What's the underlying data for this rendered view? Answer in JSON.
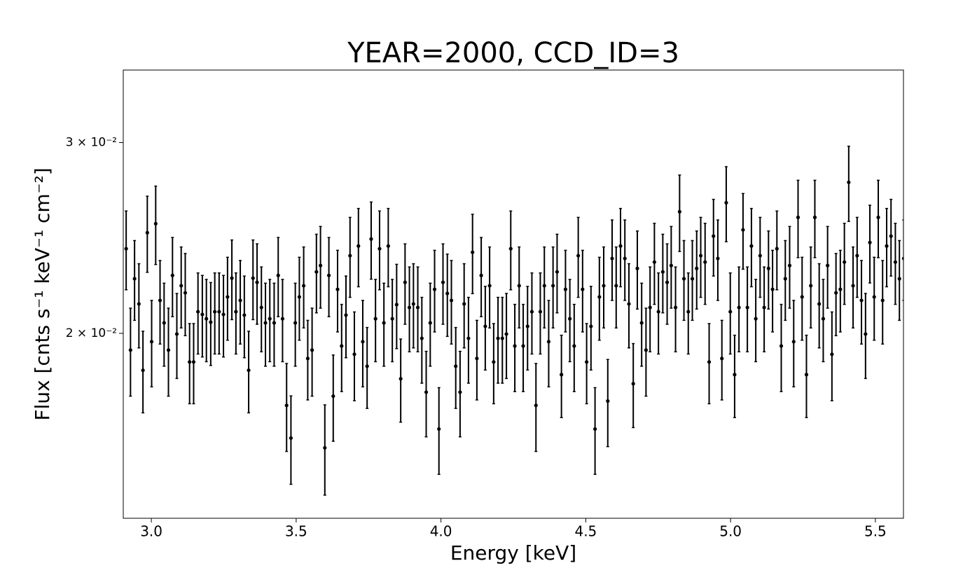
{
  "chart_data": {
    "type": "errorbar",
    "title": "YEAR=2000, CCD_ID=3",
    "xlabel": "Energy [keV]",
    "ylabel": "Flux [cnts s⁻¹ keV⁻¹ cm⁻²]",
    "color": "#000000",
    "ylog": true,
    "xlim": [
      2.903,
      5.597
    ],
    "ylim": [
      0.0135,
      0.035
    ],
    "xticks": [
      {
        "value": 3,
        "label": "3.0"
      },
      3.5,
      {
        "value": 4,
        "label": "4.0"
      },
      4.5,
      {
        "value": 5,
        "label": "5.0"
      },
      5.5
    ],
    "yticks": [
      {
        "value": 0.02,
        "label": "2 × 10⁻²"
      },
      {
        "value": 0.03,
        "label": "3 × 10⁻²"
      }
    ],
    "x": [
      2.913,
      2.928,
      2.942,
      2.957,
      2.971,
      2.986,
      3.001,
      3.015,
      3.03,
      3.044,
      3.059,
      3.073,
      3.088,
      3.103,
      3.117,
      3.132,
      3.146,
      3.161,
      3.176,
      3.19,
      3.205,
      3.219,
      3.234,
      3.249,
      3.263,
      3.278,
      3.292,
      3.307,
      3.321,
      3.336,
      3.351,
      3.365,
      3.38,
      3.394,
      3.409,
      3.424,
      3.438,
      3.453,
      3.467,
      3.482,
      3.497,
      3.511,
      3.526,
      3.54,
      3.555,
      3.57,
      3.584,
      3.599,
      3.613,
      3.628,
      3.643,
      3.657,
      3.672,
      3.686,
      3.701,
      3.715,
      3.73,
      3.745,
      3.759,
      3.774,
      3.788,
      3.803,
      3.818,
      3.832,
      3.847,
      3.861,
      3.876,
      3.891,
      3.905,
      3.92,
      3.934,
      3.949,
      3.963,
      3.978,
      3.993,
      4.007,
      4.022,
      4.036,
      4.051,
      4.066,
      4.08,
      4.095,
      4.109,
      4.124,
      4.139,
      4.153,
      4.168,
      4.182,
      4.197,
      4.212,
      4.226,
      4.241,
      4.255,
      4.27,
      4.284,
      4.299,
      4.314,
      4.328,
      4.343,
      4.357,
      4.372,
      4.387,
      4.401,
      4.416,
      4.43,
      4.445,
      4.46,
      4.474,
      4.489,
      4.503,
      4.518,
      4.532,
      4.547,
      4.562,
      4.576,
      4.591,
      4.605,
      4.62,
      4.635,
      4.649,
      4.664,
      4.678,
      4.693,
      4.708,
      4.722,
      4.737,
      4.751,
      4.766,
      4.781,
      4.795,
      4.81,
      4.824,
      4.839,
      4.854,
      4.868,
      4.883,
      4.897,
      4.912,
      4.926,
      4.941,
      4.956,
      4.97,
      4.985,
      4.999,
      5.014,
      5.029,
      5.043,
      5.058,
      5.072,
      5.087,
      5.102,
      5.116,
      5.131,
      5.145,
      5.16,
      5.175,
      5.189,
      5.204,
      5.218,
      5.233,
      5.247,
      5.262,
      5.277,
      5.291,
      5.306,
      5.32,
      5.335,
      5.35,
      5.364,
      5.379,
      5.393,
      5.408,
      5.423,
      5.437,
      5.452,
      5.466,
      5.481,
      5.496,
      5.51,
      5.525,
      5.539,
      5.554,
      5.569,
      5.583,
      5.598
    ],
    "values": [
      0.02394,
      0.0193,
      0.02246,
      0.02129,
      0.01849,
      0.02477,
      0.01965,
      0.02525,
      0.02145,
      0.02045,
      0.0193,
      0.02262,
      0.01997,
      0.02213,
      0.0218,
      0.01882,
      0.01882,
      0.02094,
      0.02082,
      0.02063,
      0.02048,
      0.02094,
      0.02094,
      0.02082,
      0.02161,
      0.02249,
      0.02094,
      0.02145,
      0.02079,
      0.01849,
      0.02249,
      0.02229,
      0.02113,
      0.02045,
      0.02063,
      0.02045,
      0.02262,
      0.02063,
      0.01716,
      0.01601,
      0.02045,
      0.02161,
      0.02213,
      0.01896,
      0.0193,
      0.02279,
      0.0231,
      0.01568,
      0.02262,
      0.0175,
      0.02196,
      0.01947,
      0.02079,
      0.02359,
      0.01913,
      0.02408,
      0.01965,
      0.01865,
      0.02444,
      0.02063,
      0.02394,
      0.02045,
      0.02408,
      0.02063,
      0.02126,
      0.01816,
      0.02229,
      0.02113,
      0.02129,
      0.02113,
      0.01979,
      0.01765,
      0.02045,
      0.02196,
      0.01632,
      0.02229,
      0.02177,
      0.02145,
      0.01865,
      0.01765,
      0.02129,
      0.01979,
      0.02376,
      0.01896,
      0.02262,
      0.0203,
      0.02213,
      0.01882,
      0.01979,
      0.01979,
      0.01997,
      0.02394,
      0.01947,
      0.02213,
      0.01947,
      0.0203,
      0.02094,
      0.01716,
      0.02094,
      0.02213,
      0.01965,
      0.02213,
      0.02279,
      0.01832,
      0.02196,
      0.02063,
      0.01947,
      0.02359,
      0.02196,
      0.01882,
      0.0203,
      0.01632,
      0.02161,
      0.02213,
      0.01732,
      0.02345,
      0.02213,
      0.02408,
      0.02345,
      0.02129,
      0.01797,
      0.02296,
      0.02045,
      0.0193,
      0.02113,
      0.02327,
      0.02094,
      0.02279,
      0.02229,
      0.0231,
      0.02113,
      0.0259,
      0.02246,
      0.02094,
      0.02246,
      0.02296,
      0.02359,
      0.02327,
      0.01882,
      0.02459,
      0.02345,
      0.01896,
      0.0264,
      0.02094,
      0.01832,
      0.02113,
      0.02492,
      0.02113,
      0.02408,
      0.02063,
      0.02359,
      0.02113,
      0.02296,
      0.02196,
      0.02394,
      0.01947,
      0.02246,
      0.0231,
      0.01965,
      0.02559,
      0.02161,
      0.01832,
      0.02213,
      0.02559,
      0.02129,
      0.02063,
      0.0231,
      0.01913,
      0.0218,
      0.02196,
      0.02327,
      0.02757,
      0.02213,
      0.02359,
      0.02145,
      0.01997,
      0.02426,
      0.02161,
      0.02559,
      0.02145,
      0.02408,
      0.02459,
      0.02327,
      0.02246,
      0.02345
    ],
    "errors": [
      0.002,
      0.0018,
      0.0019,
      0.0019,
      0.0016,
      0.002,
      0.0018,
      0.0021,
      0.0019,
      0.0018,
      0.0018,
      0.0019,
      0.0018,
      0.0019,
      0.0019,
      0.0016,
      0.0016,
      0.0018,
      0.0018,
      0.0018,
      0.0018,
      0.0018,
      0.0018,
      0.0018,
      0.0019,
      0.0019,
      0.0018,
      0.0019,
      0.0018,
      0.0016,
      0.0019,
      0.0019,
      0.0019,
      0.0018,
      0.0018,
      0.0018,
      0.0019,
      0.0018,
      0.0016,
      0.0015,
      0.0018,
      0.0019,
      0.0019,
      0.0016,
      0.0018,
      0.0019,
      0.002,
      0.0015,
      0.0019,
      0.0016,
      0.0019,
      0.0018,
      0.0018,
      0.002,
      0.0018,
      0.002,
      0.0018,
      0.0016,
      0.002,
      0.0018,
      0.002,
      0.0018,
      0.002,
      0.0018,
      0.0019,
      0.0016,
      0.0019,
      0.0019,
      0.0019,
      0.0019,
      0.0018,
      0.0016,
      0.0018,
      0.0019,
      0.0015,
      0.0019,
      0.0019,
      0.0019,
      0.0016,
      0.0016,
      0.0019,
      0.0018,
      0.002,
      0.0016,
      0.0019,
      0.0018,
      0.0019,
      0.0016,
      0.0018,
      0.0018,
      0.0018,
      0.002,
      0.0018,
      0.0019,
      0.0018,
      0.0018,
      0.0018,
      0.0016,
      0.0018,
      0.0019,
      0.0018,
      0.0019,
      0.0019,
      0.0016,
      0.0019,
      0.0018,
      0.0018,
      0.002,
      0.0019,
      0.0016,
      0.0018,
      0.0015,
      0.0019,
      0.0019,
      0.0016,
      0.002,
      0.0019,
      0.002,
      0.002,
      0.0019,
      0.0016,
      0.0019,
      0.0018,
      0.0018,
      0.0019,
      0.002,
      0.0018,
      0.0019,
      0.0019,
      0.002,
      0.0019,
      0.0021,
      0.0019,
      0.0018,
      0.0019,
      0.0019,
      0.002,
      0.002,
      0.0016,
      0.002,
      0.002,
      0.0016,
      0.0021,
      0.0018,
      0.0016,
      0.0019,
      0.002,
      0.0019,
      0.002,
      0.0018,
      0.002,
      0.0019,
      0.0019,
      0.0019,
      0.002,
      0.0018,
      0.0019,
      0.002,
      0.0018,
      0.0021,
      0.0019,
      0.0016,
      0.0019,
      0.0021,
      0.0019,
      0.0018,
      0.002,
      0.0018,
      0.0019,
      0.0019,
      0.002,
      0.0022,
      0.0019,
      0.002,
      0.0019,
      0.0018,
      0.002,
      0.0019,
      0.0021,
      0.0019,
      0.002,
      0.002,
      0.002,
      0.0019,
      0.002
    ]
  }
}
